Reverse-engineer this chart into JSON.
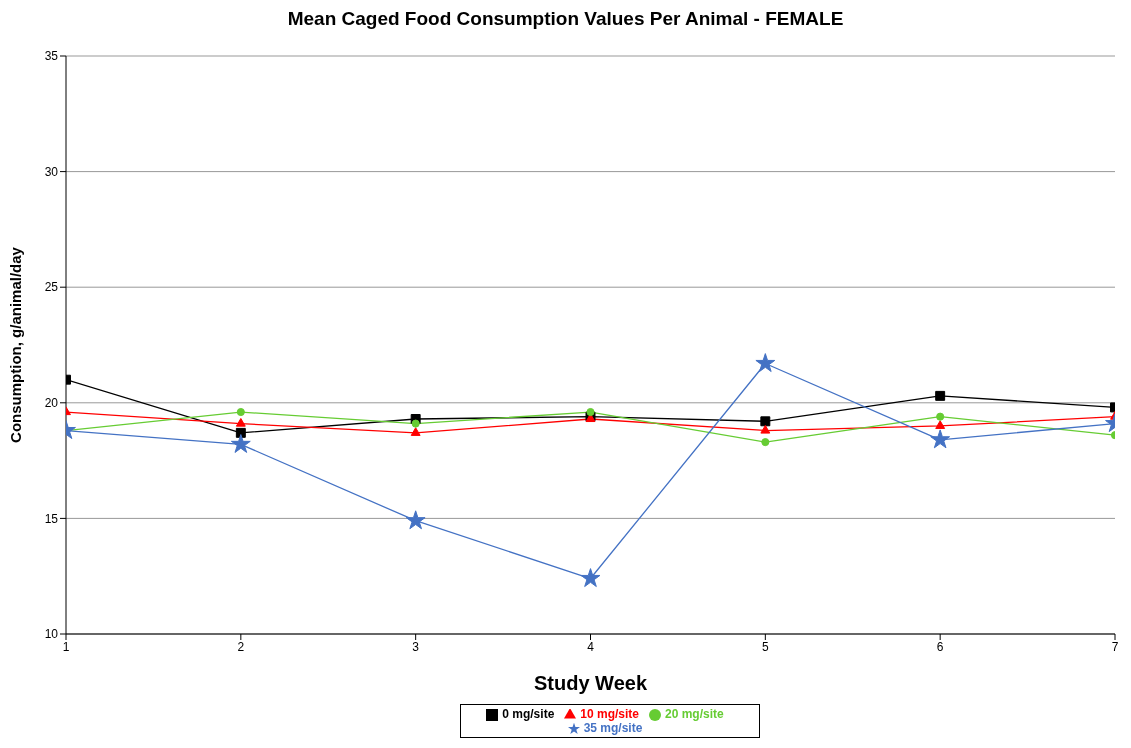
{
  "chart_data": {
    "type": "line",
    "title": "Mean Caged Food Consumption Values Per Animal - FEMALE",
    "xlabel": "Study Week",
    "ylabel": "Consumption, g/animal/day",
    "x": [
      1,
      2,
      3,
      4,
      5,
      6,
      7
    ],
    "series": [
      {
        "name": "0 mg/site",
        "color": "#000000",
        "marker": "square",
        "values": [
          21.0,
          18.7,
          19.3,
          19.4,
          19.2,
          20.3,
          19.8
        ]
      },
      {
        "name": "10 mg/site",
        "color": "#ff0000",
        "marker": "triangle",
        "values": [
          19.6,
          19.1,
          18.7,
          19.3,
          18.8,
          19.0,
          19.4
        ]
      },
      {
        "name": "20 mg/site",
        "color": "#66cc33",
        "marker": "circle",
        "values": [
          18.8,
          19.6,
          19.1,
          19.6,
          18.3,
          19.4,
          18.6
        ]
      },
      {
        "name": "35 mg/site",
        "color": "#4472c4",
        "marker": "star",
        "values": [
          18.8,
          18.2,
          14.9,
          12.4,
          21.7,
          18.4,
          19.1
        ]
      }
    ],
    "xlim": [
      1,
      7
    ],
    "xticks": [
      1,
      2,
      3,
      4,
      5,
      6,
      7
    ],
    "ylim": [
      10,
      35
    ],
    "yticks": [
      10,
      15,
      20,
      25,
      30,
      35
    ],
    "grid": "y",
    "legend": "bottom",
    "line_style": "solid"
  }
}
